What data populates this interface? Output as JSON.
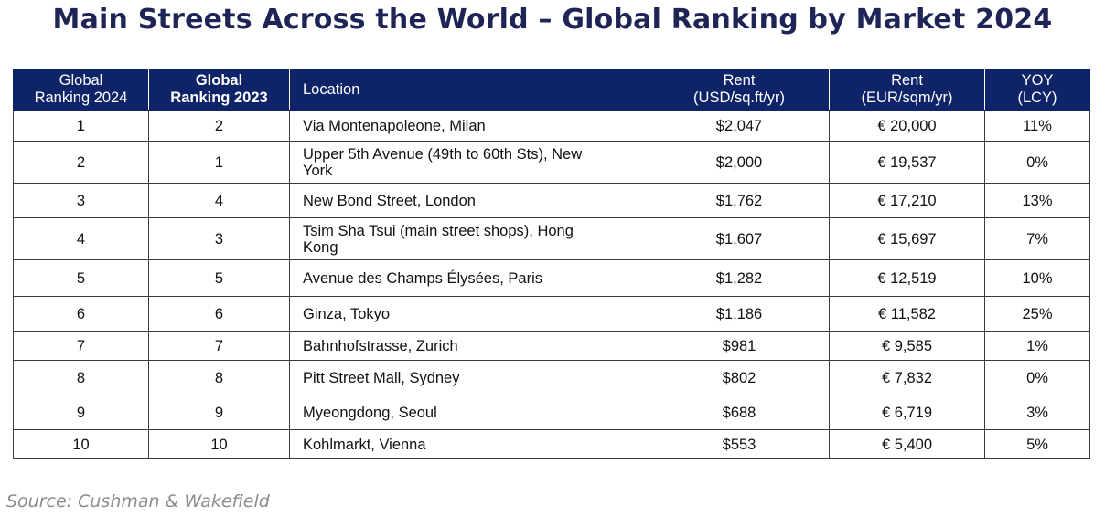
{
  "title": "Main Streets Across the World – Global Ranking by Market 2024",
  "table": {
    "headers": [
      {
        "line1": "Global",
        "line2": "Ranking 2024"
      },
      {
        "line1": "Global",
        "line2": "Ranking 2023"
      },
      {
        "line1": "Location",
        "line2": ""
      },
      {
        "line1": "Rent",
        "line2": "(USD/sq.ft/yr)"
      },
      {
        "line1": "Rent",
        "line2": "(EUR/sqm/yr)"
      },
      {
        "line1": "YOY",
        "line2": "(LCY)"
      }
    ],
    "rows": [
      {
        "rank2024": "1",
        "rank2023": "2",
        "location_line1": "Via Montenapoleone, Milan",
        "location_line2": "",
        "rent_usd": "$2,047",
        "rent_eur": "€ 20,000",
        "yoy": "11%"
      },
      {
        "rank2024": "2",
        "rank2023": "1",
        "location_line1": "Upper 5th Avenue (49th to 60th Sts), New",
        "location_line2": "York",
        "rent_usd": "$2,000",
        "rent_eur": "€ 19,537",
        "yoy": "0%"
      },
      {
        "rank2024": "3",
        "rank2023": "4",
        "location_line1": "New Bond Street, London",
        "location_line2": "",
        "rent_usd": "$1,762",
        "rent_eur": "€ 17,210",
        "yoy": "13%"
      },
      {
        "rank2024": "4",
        "rank2023": "3",
        "location_line1": "Tsim Sha Tsui (main street shops), Hong",
        "location_line2": "Kong",
        "rent_usd": "$1,607",
        "rent_eur": "€ 15,697",
        "yoy": "7%"
      },
      {
        "rank2024": "5",
        "rank2023": "5",
        "location_line1": "Avenue des Champs Élysées, Paris",
        "location_line2": "",
        "rent_usd": "$1,282",
        "rent_eur": "€ 12,519",
        "yoy": "10%"
      },
      {
        "rank2024": "6",
        "rank2023": "6",
        "location_line1": "Ginza, Tokyo",
        "location_line2": "",
        "rent_usd": "$1,186",
        "rent_eur": "€ 11,582",
        "yoy": "25%"
      },
      {
        "rank2024": "7",
        "rank2023": "7",
        "location_line1": "Bahnhofstrasse, Zurich",
        "location_line2": "",
        "rent_usd": "$981",
        "rent_eur": "€ 9,585",
        "yoy": "1%"
      },
      {
        "rank2024": "8",
        "rank2023": "8",
        "location_line1": "Pitt Street Mall, Sydney",
        "location_line2": "",
        "rent_usd": "$802",
        "rent_eur": "€ 7,832",
        "yoy": "0%"
      },
      {
        "rank2024": "9",
        "rank2023": "9",
        "location_line1": "Myeongdong, Seoul",
        "location_line2": "",
        "rent_usd": "$688",
        "rent_eur": "€ 6,719",
        "yoy": "3%"
      },
      {
        "rank2024": "10",
        "rank2023": "10",
        "location_line1": "Kohlmarkt, Vienna",
        "location_line2": "",
        "rent_usd": "$553",
        "rent_eur": "€ 5,400",
        "yoy": "5%"
      }
    ]
  },
  "source": "Source: Cushman & Wakefield",
  "colors": {
    "title": "#1f2457",
    "header_bg": "#0f2468",
    "header_text": "#ffffff",
    "source_text": "#8c8c8c"
  }
}
